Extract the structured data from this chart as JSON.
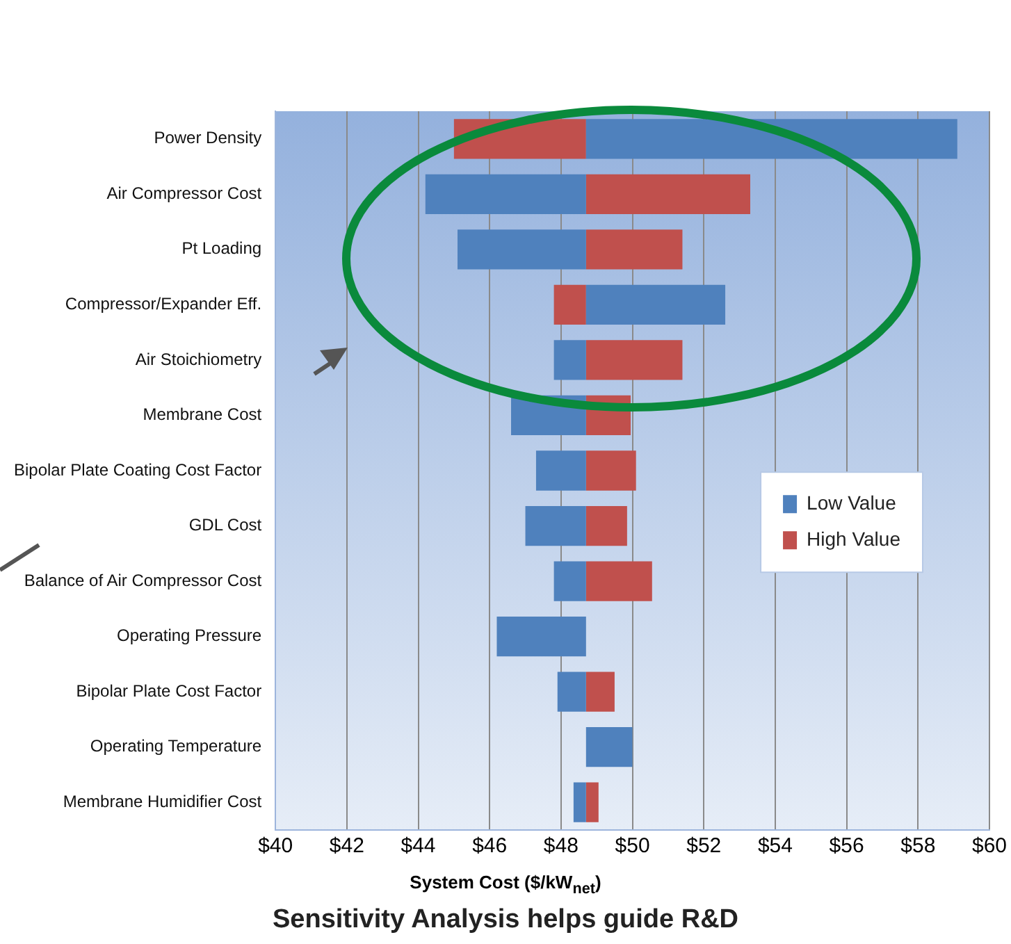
{
  "chart_data": {
    "type": "bar",
    "orientation": "horizontal",
    "xlabel": "System Cost ($/kW$_{net}$)",
    "categories": [
      "Power Density",
      "Air Compressor Cost",
      "Pt Loading",
      "Compressor/Expander Eff.",
      "Air Stoichiometry",
      "Membrane Cost",
      "Bipolar Plate Coating Cost Factor",
      "GDL Cost",
      "Balance of Air Compressor Cost",
      "Operating Pressure",
      "Bipolar Plate Cost Factor",
      "Operating Temperature",
      "Membrane Humidifier Cost"
    ],
    "series": [
      {
        "name": "Low Value",
        "color": "#4f81bd",
        "base": [
          48.7,
          48.7,
          48.7,
          48.7,
          48.7,
          48.7,
          48.7,
          48.7,
          48.7,
          48.7,
          48.7,
          48.7,
          48.7
        ],
        "values": [
          10.4,
          -4.5,
          -3.6,
          3.9,
          -0.9,
          -2.1,
          -1.4,
          -1.7,
          -0.9,
          -2.5,
          -0.8,
          1.3,
          -0.35
        ]
      },
      {
        "name": "High Value",
        "color": "#c0504d",
        "base": [
          48.7,
          48.7,
          48.7,
          48.7,
          48.7,
          48.7,
          48.7,
          48.7,
          48.7,
          null,
          48.7,
          null,
          48.7
        ],
        "values": [
          -3.7,
          4.6,
          2.7,
          -0.9,
          2.7,
          1.25,
          1.4,
          1.15,
          1.85,
          null,
          0.8,
          null,
          0.35
        ]
      }
    ],
    "xlim": [
      40,
      60
    ],
    "xticks": [
      {
        "value": 40,
        "label": "$40"
      },
      {
        "value": 42,
        "label": "$42"
      },
      {
        "value": 44,
        "label": "$44"
      },
      {
        "value": 46,
        "label": "$46"
      },
      {
        "value": 48,
        "label": "$48"
      },
      {
        "value": 50,
        "label": "$50"
      },
      {
        "value": 52,
        "label": "$52"
      },
      {
        "value": 54,
        "label": "$54"
      },
      {
        "value": 56,
        "label": "$56"
      },
      {
        "value": 58,
        "label": "$58"
      },
      {
        "value": 60,
        "label": "$60"
      }
    ],
    "grid": "x",
    "legend": "right",
    "annotations": [
      "Sensitivity Analysis helps guide R&D"
    ]
  }
}
